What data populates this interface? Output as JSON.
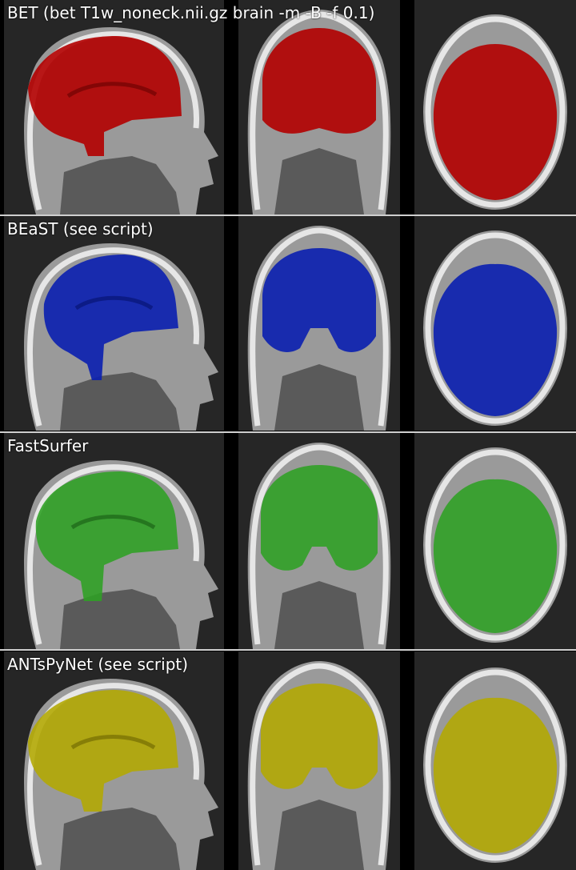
{
  "methods": [
    {
      "label": "BET (bet T1w_noneck.nii.gz brain -m -B -f 0.1)",
      "mask_color": "#b30000"
    },
    {
      "label": "BEaST (see script)",
      "mask_color": "#0a1fb0"
    },
    {
      "label": "FastSurfer",
      "mask_color": "#2ea023"
    },
    {
      "label": "ANTsPyNet (see script)",
      "mask_color": "#b3a800"
    }
  ],
  "views": [
    "sagittal",
    "coronal",
    "axial"
  ],
  "colors": {
    "background": "#000000",
    "panel": "#262626",
    "separator": "#cfcfcf",
    "skull": "#e6e6e6",
    "tissue": "#8a8a8a",
    "label_text": "#ffffff"
  }
}
